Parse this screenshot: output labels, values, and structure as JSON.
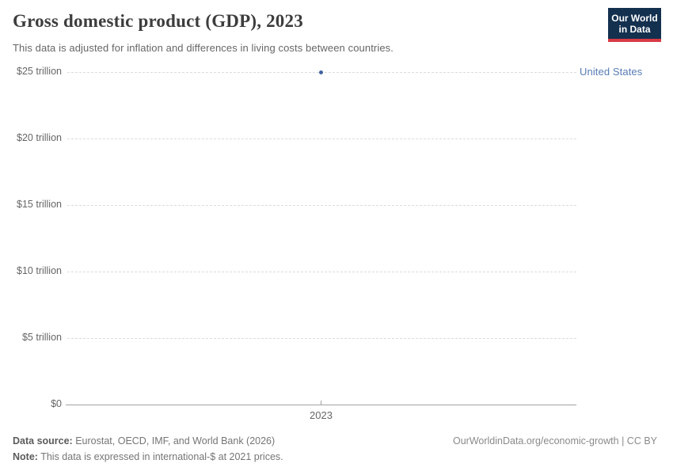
{
  "header": {
    "title": "Gross domestic product (GDP), 2023",
    "subtitle": "This data is adjusted for inflation and differences in living costs between countries.",
    "logo": {
      "line1": "Our World",
      "line2": "in Data",
      "bg_color": "#13304f",
      "accent_color": "#d93a45"
    }
  },
  "chart_data": {
    "type": "scatter",
    "title": "Gross domestic product (GDP), 2023",
    "x_categories": [
      "2023"
    ],
    "series": [
      {
        "name": "United States",
        "x": "2023",
        "value_trillion_intl_dollars": 25.0,
        "color": "#41629f",
        "label_color": "#577cb5"
      }
    ],
    "ylim": [
      0,
      25
    ],
    "yticks": [
      {
        "value": 0,
        "label": "$0"
      },
      {
        "value": 5,
        "label": "$5 trillion"
      },
      {
        "value": 10,
        "label": "$10 trillion"
      },
      {
        "value": 15,
        "label": "$15 trillion"
      },
      {
        "value": 20,
        "label": "$20 trillion"
      },
      {
        "value": 25,
        "label": "$25 trillion"
      }
    ],
    "grid": true,
    "grid_color": "#dcdcdc",
    "axis_color": "#a3a3a3",
    "tick_label_color": "#666666",
    "legend_position": "right-of-plot"
  },
  "footer": {
    "source_label": "Data source:",
    "source_text": "Eurostat, OECD, IMF, and World Bank (2026)",
    "note_label": "Note:",
    "note_text": "This data is expressed in international-$ at 2021 prices.",
    "link": "OurWorldinData.org/economic-growth",
    "separator": "|",
    "license": "CC BY"
  }
}
